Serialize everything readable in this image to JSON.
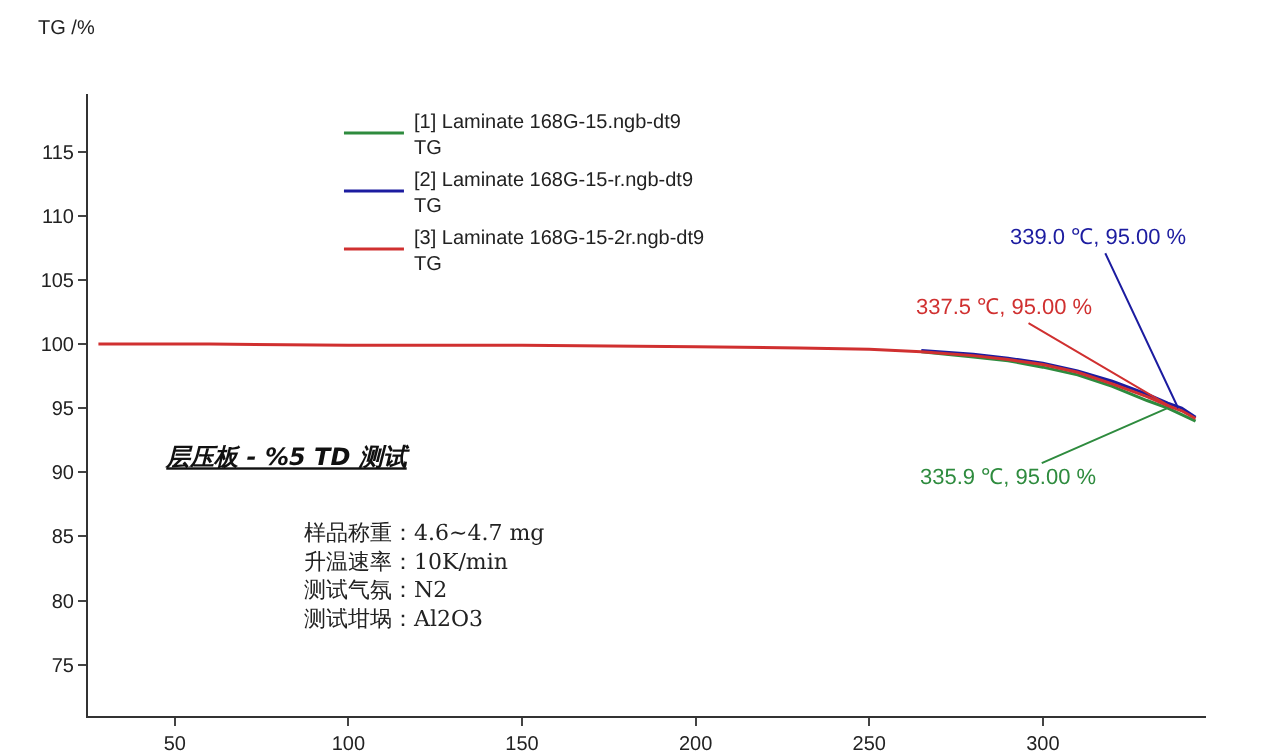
{
  "chart_data": {
    "type": "line",
    "title": "层压板 - %5 TD 测试",
    "ylabel": "TG /%",
    "x": [
      28,
      60,
      100,
      150,
      200,
      230,
      250,
      265,
      280,
      290,
      300,
      310,
      320,
      330,
      336,
      340,
      344
    ],
    "series": [
      {
        "name": "[1] Laminate 168G-15.ngb-dt9\nTG",
        "color": "#2e8b3e",
        "x": [
          265,
          280,
          290,
          300,
          310,
          320,
          330,
          336,
          340,
          344
        ],
        "values": [
          99.4,
          99.0,
          98.7,
          98.2,
          97.6,
          96.7,
          95.6,
          95.0,
          94.5,
          94.0
        ]
      },
      {
        "name": "[2] Laminate 168G-15-r.ngb-dt9\nTG",
        "color": "#1c1ca0",
        "x": [
          265,
          280,
          290,
          300,
          310,
          320,
          330,
          336,
          340,
          344
        ],
        "values": [
          99.5,
          99.2,
          98.9,
          98.5,
          97.9,
          97.1,
          96.1,
          95.4,
          95.0,
          94.3
        ]
      },
      {
        "name": "[3] Laminate 168G-15-2r.ngb-dt9\nTG",
        "color": "#d03030",
        "values": [
          100,
          100,
          99.9,
          99.9,
          99.8,
          99.7,
          99.6,
          99.4,
          99.1,
          98.8,
          98.4,
          97.8,
          96.9,
          95.9,
          95.2,
          94.8,
          94.2
        ]
      }
    ],
    "annotations": [
      {
        "text": "335.9 ℃, 95.00 %",
        "x": 335.9,
        "y": 95
      },
      {
        "text": "339.0 ℃, 95.00 %",
        "x": 339.0,
        "y": 95
      },
      {
        "text": "337.5 ℃, 95.00 %",
        "x": 337.5,
        "y": 95
      },
      "样品称重：4.6~4.7 mg\n升温速率：10K/min\n测试气氛：N2\n测试坩埚：Al2O3"
    ],
    "xlim": [
      25,
      347
    ],
    "xticks": [
      50,
      100,
      150,
      200,
      250,
      300
    ],
    "ylim": [
      71,
      119.5
    ],
    "yticks": [
      75,
      80,
      85,
      90,
      95,
      100,
      105,
      110,
      115
    ],
    "grid": false,
    "legend": "top left",
    "line_style": "solid",
    "marker": "none"
  }
}
